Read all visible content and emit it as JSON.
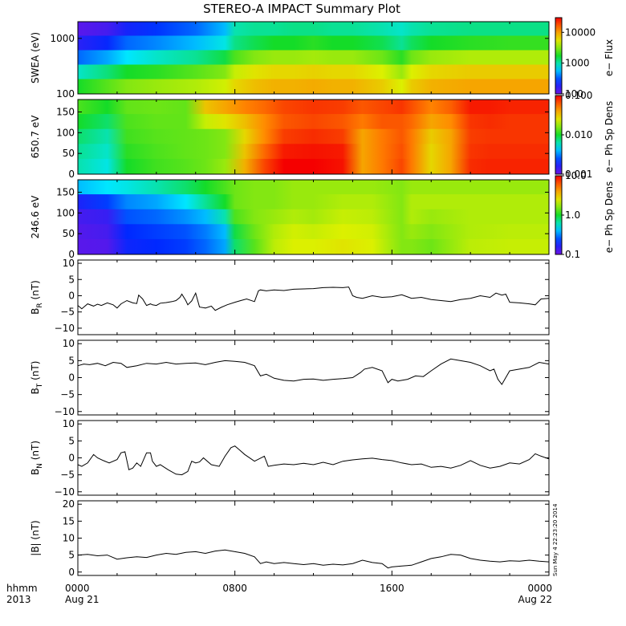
{
  "title": "STEREO-A IMPACT Summary Plot",
  "time_axis": {
    "label_line1": "hhmm",
    "label_line2": "2013",
    "ticks": [
      {
        "hhmm": "0000",
        "date": "Aug 21",
        "hour": 0
      },
      {
        "hhmm": "0800",
        "date": "",
        "hour": 8
      },
      {
        "hhmm": "1600",
        "date": "",
        "hour": 16
      },
      {
        "hhmm": "0000",
        "date": "Aug 22",
        "hour": 24
      }
    ]
  },
  "stamp_text": "Sun May  4 22:23:20 2014",
  "colors": {
    "axis": "#000000",
    "line": "#000000",
    "background": "#ffffff"
  },
  "chart_data": [
    {
      "id": "swea",
      "type": "heatmap",
      "ylabel": "SWEA (eV)",
      "yscale": "log",
      "ylim": [
        100,
        2000
      ],
      "yticks": [
        {
          "v": 1000,
          "t": "1000"
        },
        {
          "v": 100,
          "t": "100"
        }
      ],
      "colorbar": {
        "label": "e− Flux",
        "scale": "log",
        "range": [
          100,
          30000
        ],
        "ticks": [
          {
            "v": 10000,
            "t": "10000"
          },
          {
            "v": 1000,
            "t": "1000"
          },
          {
            "v": 100,
            "t": "100"
          }
        ]
      },
      "times": [
        0,
        1.5,
        2.5,
        4,
        6,
        7.5,
        8,
        9,
        10,
        11,
        12,
        13,
        14,
        15.5,
        16.5,
        17,
        18,
        20,
        22,
        24
      ],
      "rows": [
        {
          "energy": 1500,
          "values": [
            0.03,
            0.06,
            0.13,
            0.17,
            0.22,
            0.3,
            0.4,
            0.42,
            0.42,
            0.43,
            0.43,
            0.42,
            0.42,
            0.4,
            0.38,
            0.4,
            0.42,
            0.43,
            0.43,
            0.43
          ]
        },
        {
          "energy": 800,
          "values": [
            0.1,
            0.15,
            0.22,
            0.25,
            0.3,
            0.36,
            0.43,
            0.47,
            0.5,
            0.5,
            0.52,
            0.5,
            0.5,
            0.47,
            0.42,
            0.46,
            0.5,
            0.52,
            0.53,
            0.53
          ]
        },
        {
          "energy": 400,
          "values": [
            0.22,
            0.28,
            0.34,
            0.38,
            0.42,
            0.48,
            0.55,
            0.6,
            0.62,
            0.62,
            0.63,
            0.62,
            0.62,
            0.58,
            0.52,
            0.58,
            0.62,
            0.64,
            0.64,
            0.64
          ]
        },
        {
          "energy": 200,
          "values": [
            0.38,
            0.44,
            0.5,
            0.52,
            0.56,
            0.6,
            0.66,
            0.7,
            0.72,
            0.72,
            0.73,
            0.72,
            0.72,
            0.68,
            0.62,
            0.68,
            0.72,
            0.74,
            0.74,
            0.74
          ]
        },
        {
          "energy": 120,
          "values": [
            0.5,
            0.56,
            0.6,
            0.62,
            0.64,
            0.67,
            0.72,
            0.76,
            0.78,
            0.78,
            0.79,
            0.78,
            0.78,
            0.74,
            0.68,
            0.74,
            0.78,
            0.8,
            0.8,
            0.8
          ]
        }
      ]
    },
    {
      "id": "pad_650",
      "type": "heatmap",
      "ylabel": "650.7 eV",
      "ylim": [
        0,
        180
      ],
      "yticks": [
        {
          "v": 150,
          "t": "150"
        },
        {
          "v": 100,
          "t": "100"
        },
        {
          "v": 50,
          "t": "50"
        },
        {
          "v": 0,
          "t": "0"
        }
      ],
      "colorbar": {
        "label": "e− Ph Sp Dens",
        "scale": "log",
        "range": [
          0.001,
          0.1
        ],
        "ticks": [
          {
            "v": 0.1,
            "t": "0.100"
          },
          {
            "v": 0.01,
            "t": "0.010"
          },
          {
            "v": 0.001,
            "t": "0.001"
          }
        ]
      },
      "times": [
        0,
        1.5,
        2.5,
        4,
        5.5,
        6.5,
        7.5,
        8.5,
        9.5,
        10.5,
        12,
        13.5,
        14.5,
        15.5,
        16.5,
        17,
        18,
        19,
        20,
        21,
        22,
        24
      ],
      "rows": [
        {
          "angle": 165,
          "values": [
            0.55,
            0.5,
            0.57,
            0.58,
            0.57,
            0.75,
            0.8,
            0.85,
            0.88,
            0.92,
            0.94,
            0.93,
            0.9,
            0.92,
            0.94,
            0.91,
            0.85,
            0.89,
            0.97,
            0.97,
            0.96,
            0.96
          ]
        },
        {
          "angle": 120,
          "values": [
            0.5,
            0.45,
            0.55,
            0.57,
            0.57,
            0.66,
            0.7,
            0.76,
            0.84,
            0.9,
            0.92,
            0.9,
            0.86,
            0.9,
            0.9,
            0.88,
            0.8,
            0.84,
            0.94,
            0.95,
            0.94,
            0.94
          ]
        },
        {
          "angle": 75,
          "values": [
            0.45,
            0.4,
            0.54,
            0.56,
            0.57,
            0.58,
            0.6,
            0.72,
            0.84,
            0.93,
            0.95,
            0.93,
            0.8,
            0.86,
            0.9,
            0.86,
            0.74,
            0.8,
            0.93,
            0.94,
            0.94,
            0.94
          ]
        },
        {
          "angle": 30,
          "values": [
            0.42,
            0.38,
            0.52,
            0.55,
            0.57,
            0.58,
            0.6,
            0.75,
            0.88,
            0.97,
            0.98,
            0.97,
            0.8,
            0.86,
            0.91,
            0.86,
            0.72,
            0.8,
            0.94,
            0.95,
            0.95,
            0.95
          ]
        },
        {
          "angle": 5,
          "values": [
            0.4,
            0.36,
            0.5,
            0.54,
            0.56,
            0.58,
            0.62,
            0.78,
            0.92,
            1.0,
            1.0,
            0.98,
            0.8,
            0.86,
            0.92,
            0.86,
            0.72,
            0.8,
            0.95,
            0.96,
            0.96,
            0.96
          ]
        }
      ]
    },
    {
      "id": "pad_246",
      "type": "heatmap",
      "ylabel": "246.6 eV",
      "ylim": [
        0,
        180
      ],
      "yticks": [
        {
          "v": 150,
          "t": "150"
        },
        {
          "v": 100,
          "t": "100"
        },
        {
          "v": 50,
          "t": "50"
        },
        {
          "v": 0,
          "t": "0"
        }
      ],
      "colorbar": {
        "label": "e− Ph Sp Dens",
        "scale": "log",
        "range": [
          0.1,
          10
        ],
        "ticks": [
          {
            "v": 10,
            "t": "10.0"
          },
          {
            "v": 1,
            "t": "1.0"
          },
          {
            "v": 0.1,
            "t": "0.1"
          }
        ]
      },
      "times": [
        0,
        1.5,
        2.5,
        4,
        5.5,
        6.5,
        7.5,
        8,
        9,
        10,
        11,
        12,
        13.5,
        15,
        16.5,
        17,
        18,
        20,
        22,
        24
      ],
      "rows": [
        {
          "angle": 165,
          "values": [
            0.3,
            0.34,
            0.36,
            0.4,
            0.45,
            0.5,
            0.55,
            0.58,
            0.6,
            0.6,
            0.62,
            0.62,
            0.62,
            0.62,
            0.6,
            0.62,
            0.62,
            0.62,
            0.62,
            0.62
          ]
        },
        {
          "angle": 120,
          "values": [
            0.12,
            0.18,
            0.25,
            0.28,
            0.34,
            0.42,
            0.5,
            0.58,
            0.6,
            0.6,
            0.62,
            0.62,
            0.64,
            0.64,
            0.6,
            0.64,
            0.64,
            0.64,
            0.64,
            0.64
          ]
        },
        {
          "angle": 75,
          "values": [
            0.06,
            0.08,
            0.2,
            0.22,
            0.26,
            0.3,
            0.4,
            0.55,
            0.6,
            0.62,
            0.64,
            0.63,
            0.66,
            0.65,
            0.6,
            0.64,
            0.62,
            0.64,
            0.64,
            0.64
          ]
        },
        {
          "angle": 30,
          "values": [
            0.04,
            0.06,
            0.16,
            0.18,
            0.2,
            0.24,
            0.3,
            0.48,
            0.58,
            0.64,
            0.67,
            0.66,
            0.68,
            0.67,
            0.6,
            0.62,
            0.6,
            0.64,
            0.65,
            0.65
          ]
        },
        {
          "angle": 5,
          "values": [
            0.03,
            0.04,
            0.14,
            0.16,
            0.18,
            0.22,
            0.28,
            0.45,
            0.56,
            0.65,
            0.68,
            0.68,
            0.7,
            0.68,
            0.6,
            0.6,
            0.58,
            0.65,
            0.66,
            0.66
          ]
        }
      ]
    },
    {
      "id": "br",
      "type": "line",
      "ylabel": "B",
      "ylabel_sub": "R",
      "ylabel_unit": " (nT)",
      "ylim": [
        -12,
        11
      ],
      "yticks": [
        {
          "v": 10,
          "t": "10"
        },
        {
          "v": 5,
          "t": "5"
        },
        {
          "v": 0,
          "t": "0"
        },
        {
          "v": -5,
          "t": "−5"
        },
        {
          "v": -10,
          "t": "−10"
        }
      ],
      "x": [
        0,
        0.2,
        0.5,
        0.8,
        1.0,
        1.2,
        1.5,
        1.8,
        2.0,
        2.2,
        2.5,
        2.8,
        3.0,
        3.1,
        3.3,
        3.5,
        3.7,
        3.8,
        4.0,
        4.2,
        4.5,
        4.8,
        5.0,
        5.2,
        5.3,
        5.5,
        5.6,
        5.8,
        6.0,
        6.2,
        6.5,
        6.8,
        7.0,
        7.3,
        7.6,
        8.0,
        8.3,
        8.6,
        9.0,
        9.2,
        9.3,
        9.6,
        10.0,
        10.5,
        11.0,
        11.5,
        12.0,
        12.5,
        13.0,
        13.5,
        13.8,
        14.0,
        14.2,
        14.5,
        15.0,
        15.5,
        16.0,
        16.5,
        17.0,
        17.5,
        18.0,
        18.5,
        19.0,
        19.5,
        20.0,
        20.5,
        21.0,
        21.3,
        21.6,
        21.8,
        22.0,
        22.5,
        23.0,
        23.3,
        23.6,
        24.0
      ],
      "y": [
        -3,
        -4,
        -2.5,
        -3.2,
        -2.6,
        -3,
        -2.2,
        -2.8,
        -3.8,
        -2.5,
        -1.5,
        -2.2,
        -2.4,
        0.2,
        -1,
        -3,
        -2.5,
        -2.8,
        -3,
        -2.3,
        -2.1,
        -1.8,
        -1.5,
        -0.5,
        0.5,
        -1.5,
        -2.8,
        -1.6,
        0.8,
        -3.5,
        -3.8,
        -3.2,
        -4.5,
        -3.6,
        -2.8,
        -2,
        -1.5,
        -1,
        -1.8,
        1.5,
        1.8,
        1.5,
        1.8,
        1.6,
        2,
        2.1,
        2.2,
        2.5,
        2.6,
        2.5,
        2.7,
        0,
        -0.5,
        -0.8,
        0,
        -0.5,
        -0.3,
        0.3,
        -0.8,
        -0.5,
        -1.2,
        -1.5,
        -1.8,
        -1.2,
        -0.8,
        0,
        -0.5,
        0.8,
        0.2,
        0.5,
        -2,
        -2.2,
        -2.5,
        -2.8,
        -1,
        -0.8
      ]
    },
    {
      "id": "bt",
      "type": "line",
      "ylabel": "B",
      "ylabel_sub": "T",
      "ylabel_unit": " (nT)",
      "ylim": [
        -11,
        11
      ],
      "yticks": [
        {
          "v": 10,
          "t": "10"
        },
        {
          "v": 5,
          "t": "5"
        },
        {
          "v": 0,
          "t": "0"
        },
        {
          "v": -5,
          "t": "−5"
        },
        {
          "v": -10,
          "t": "−10"
        }
      ],
      "x": [
        0,
        0.3,
        0.6,
        1.0,
        1.4,
        1.8,
        2.2,
        2.5,
        3.0,
        3.5,
        4.0,
        4.5,
        5.0,
        5.5,
        6.0,
        6.5,
        7.0,
        7.5,
        8.0,
        8.5,
        9.0,
        9.3,
        9.6,
        10.0,
        10.5,
        11.0,
        11.5,
        12.0,
        12.5,
        13.0,
        13.5,
        14.0,
        14.4,
        14.6,
        15.0,
        15.5,
        15.8,
        16.0,
        16.3,
        16.8,
        17.2,
        17.6,
        18.0,
        18.5,
        19.0,
        19.5,
        20.0,
        20.5,
        21.0,
        21.2,
        21.4,
        21.6,
        22.0,
        22.5,
        23.0,
        23.5,
        24.0
      ],
      "y": [
        3.5,
        4,
        3.8,
        4.2,
        3.5,
        4.5,
        4.2,
        3,
        3.5,
        4.2,
        4,
        4.5,
        4,
        4.2,
        4.3,
        3.8,
        4.5,
        5,
        4.8,
        4.5,
        3.5,
        0.5,
        1,
        -0.2,
        -0.8,
        -1,
        -0.5,
        -0.4,
        -0.8,
        -0.5,
        -0.3,
        0,
        1.5,
        2.5,
        3,
        2,
        -1.5,
        -0.5,
        -1,
        -0.5,
        0.5,
        0.3,
        2,
        4,
        5.5,
        5,
        4.5,
        3.5,
        2,
        2.5,
        -0.5,
        -2,
        2,
        2.5,
        3,
        4.5,
        4
      ]
    },
    {
      "id": "bn",
      "type": "line",
      "ylabel": "B",
      "ylabel_sub": "N",
      "ylabel_unit": " (nT)",
      "ylim": [
        -11,
        11
      ],
      "yticks": [
        {
          "v": 10,
          "t": "10"
        },
        {
          "v": 5,
          "t": "5"
        },
        {
          "v": 0,
          "t": "0"
        },
        {
          "v": -5,
          "t": "−5"
        },
        {
          "v": -10,
          "t": "−10"
        }
      ],
      "x": [
        0,
        0.2,
        0.5,
        0.8,
        1.0,
        1.3,
        1.6,
        2.0,
        2.2,
        2.4,
        2.6,
        2.8,
        3.0,
        3.2,
        3.5,
        3.7,
        3.8,
        4.0,
        4.2,
        4.6,
        5.0,
        5.3,
        5.6,
        5.8,
        6.0,
        6.2,
        6.4,
        6.8,
        7.2,
        7.5,
        7.8,
        8.0,
        8.2,
        8.5,
        9.0,
        9.5,
        9.7,
        10.0,
        10.5,
        11.0,
        11.5,
        12.0,
        12.5,
        13.0,
        13.5,
        14.0,
        14.5,
        15.0,
        15.5,
        16.0,
        16.5,
        17.0,
        17.5,
        18.0,
        18.5,
        19.0,
        19.5,
        20.0,
        20.5,
        21.0,
        21.5,
        22.0,
        22.5,
        23.0,
        23.3,
        23.6,
        24.0
      ],
      "y": [
        -2,
        -2.5,
        -1.5,
        1,
        0,
        -0.8,
        -1.5,
        -0.5,
        1.5,
        1.8,
        -3.5,
        -3,
        -1.5,
        -2.5,
        1.5,
        1.5,
        -1,
        -2.5,
        -2,
        -3.5,
        -4.8,
        -5,
        -4,
        -1,
        -1.5,
        -1.2,
        0,
        -2,
        -2.5,
        0.5,
        3,
        3.5,
        2.5,
        1,
        -1,
        0.5,
        -2.5,
        -2.2,
        -1.8,
        -2,
        -1.6,
        -2,
        -1.3,
        -2,
        -1,
        -0.6,
        -0.3,
        -0.1,
        -0.5,
        -0.8,
        -1.5,
        -2,
        -1.8,
        -2.8,
        -2.5,
        -3,
        -2.2,
        -0.8,
        -2.2,
        -3,
        -2.5,
        -1.5,
        -1.8,
        -0.5,
        1.2,
        0.5,
        -0.3
      ]
    },
    {
      "id": "bmag",
      "type": "line",
      "ylabel": "|B| (nT)",
      "ylim": [
        -1,
        21
      ],
      "yticks": [
        {
          "v": 20,
          "t": "20"
        },
        {
          "v": 15,
          "t": "15"
        },
        {
          "v": 10,
          "t": "10"
        },
        {
          "v": 5,
          "t": "5"
        },
        {
          "v": 0,
          "t": "0"
        }
      ],
      "x": [
        0,
        0.5,
        1.0,
        1.5,
        2.0,
        2.5,
        3.0,
        3.5,
        4.0,
        4.5,
        5.0,
        5.5,
        6.0,
        6.5,
        7.0,
        7.5,
        8.0,
        8.5,
        9.0,
        9.3,
        9.6,
        10.0,
        10.5,
        11.0,
        11.5,
        12.0,
        12.5,
        13.0,
        13.5,
        14.0,
        14.5,
        15.0,
        15.5,
        15.8,
        16.0,
        16.5,
        17.0,
        17.5,
        18.0,
        18.5,
        19.0,
        19.5,
        20.0,
        20.5,
        21.0,
        21.5,
        22.0,
        22.5,
        23.0,
        23.5,
        24.0
      ],
      "y": [
        5,
        5.2,
        4.8,
        5,
        3.8,
        4.2,
        4.5,
        4.3,
        5,
        5.5,
        5.2,
        5.8,
        6,
        5.5,
        6.2,
        6.5,
        6,
        5.5,
        4.5,
        2.5,
        3,
        2.5,
        2.8,
        2.5,
        2.2,
        2.5,
        2,
        2.3,
        2.1,
        2.5,
        3.5,
        2.8,
        2.5,
        1.2,
        1.5,
        1.8,
        2,
        3,
        4,
        4.5,
        5.2,
        5,
        4,
        3.5,
        3.2,
        3,
        3.3,
        3.2,
        3.5,
        3.2,
        3
      ]
    }
  ]
}
